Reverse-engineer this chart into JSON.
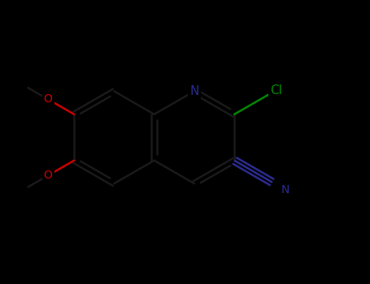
{
  "bg": "#000000",
  "bond_color": "#1a1a1a",
  "N_color": "#2b2b8f",
  "O_color": "#cc0000",
  "Cl_color": "#008800",
  "CN_color": "#2b2b8f",
  "bond_lw": 1.8,
  "db_sep": 0.055,
  "bl": 1.0,
  "font_size_atom": 11,
  "font_size_small": 9,
  "xlim": [
    0.5,
    8.5
  ],
  "ylim": [
    1.0,
    6.5
  ]
}
